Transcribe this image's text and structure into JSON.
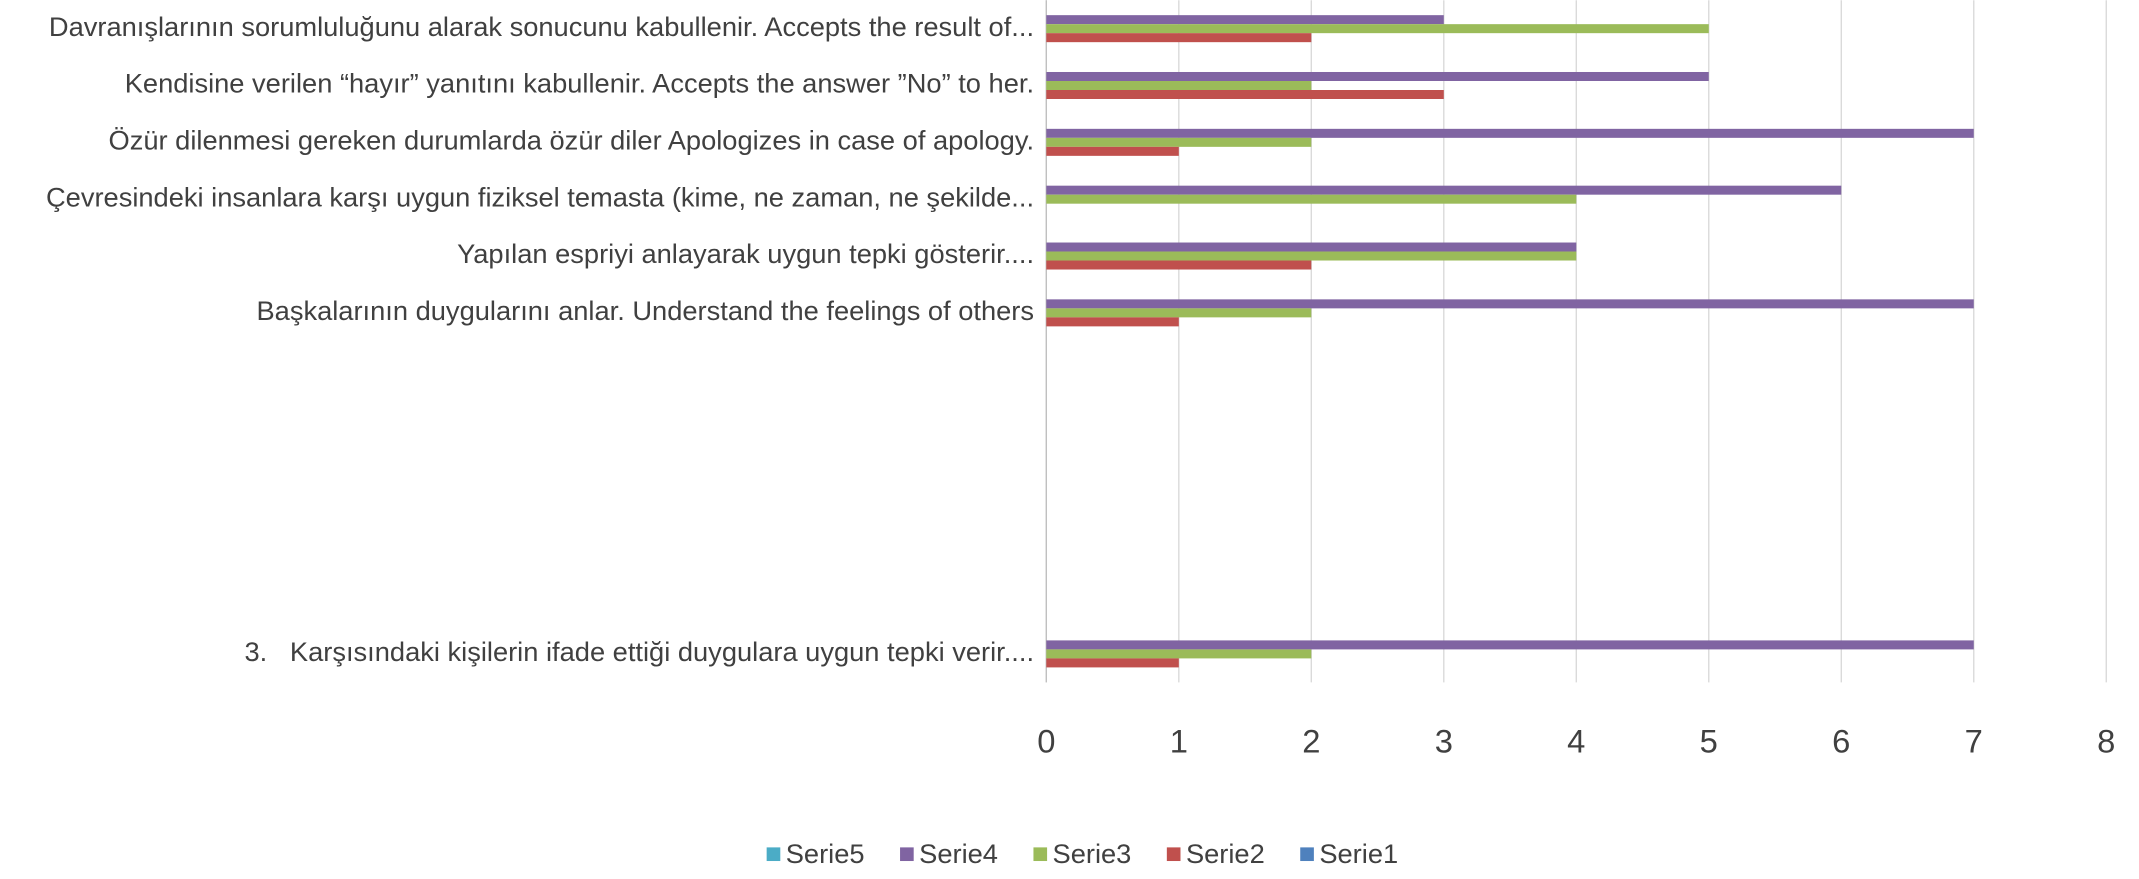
{
  "chart_data": {
    "type": "bar",
    "orientation": "horizontal",
    "categories": [
      "Davranışlarının sorumluluğunu alarak sonucunu kabullenir. Accepts the result of...",
      "Kendisine verilen “hayır” yanıtını kabullenir. Accepts the answer ”No” to her.",
      "Özür dilenmesi gereken durumlarda özür diler Apologizes in case of apology.",
      "Çevresindeki insanlara karşı uygun fiziksel temasta (kime, ne zaman, ne şekilde...",
      "Yapılan espriyi anlayarak uygun tepki gösterir....",
      "Başkalarının duygularını anlar. Understand the feelings of others",
      null,
      null,
      null,
      null,
      null,
      "3.   Karşısındaki kişilerin ifade ettiği duygulara uygun tepki verir...."
    ],
    "series": [
      {
        "name": "Serie5",
        "color": "#4bacc6",
        "values": [
          null,
          null,
          null,
          null,
          null,
          null,
          null,
          null,
          null,
          null,
          null,
          null
        ]
      },
      {
        "name": "Serie4",
        "color": "#8064a2",
        "values": [
          3,
          5,
          7,
          6,
          4,
          7,
          null,
          null,
          null,
          null,
          null,
          7
        ]
      },
      {
        "name": "Serie3",
        "color": "#9bbb59",
        "values": [
          5,
          2,
          2,
          4,
          4,
          2,
          null,
          null,
          null,
          null,
          null,
          2
        ]
      },
      {
        "name": "Serie2",
        "color": "#c0504d",
        "values": [
          2,
          3,
          1,
          null,
          2,
          1,
          null,
          null,
          null,
          null,
          null,
          1
        ]
      },
      {
        "name": "Serie1",
        "color": "#4f81bd",
        "values": [
          null,
          null,
          null,
          null,
          null,
          null,
          null,
          null,
          null,
          null,
          null,
          null
        ]
      }
    ],
    "xlim": [
      0,
      8
    ],
    "xticks": [
      0,
      1,
      2,
      3,
      4,
      5,
      6,
      7,
      8
    ],
    "grid": true,
    "legend": "bottom"
  }
}
